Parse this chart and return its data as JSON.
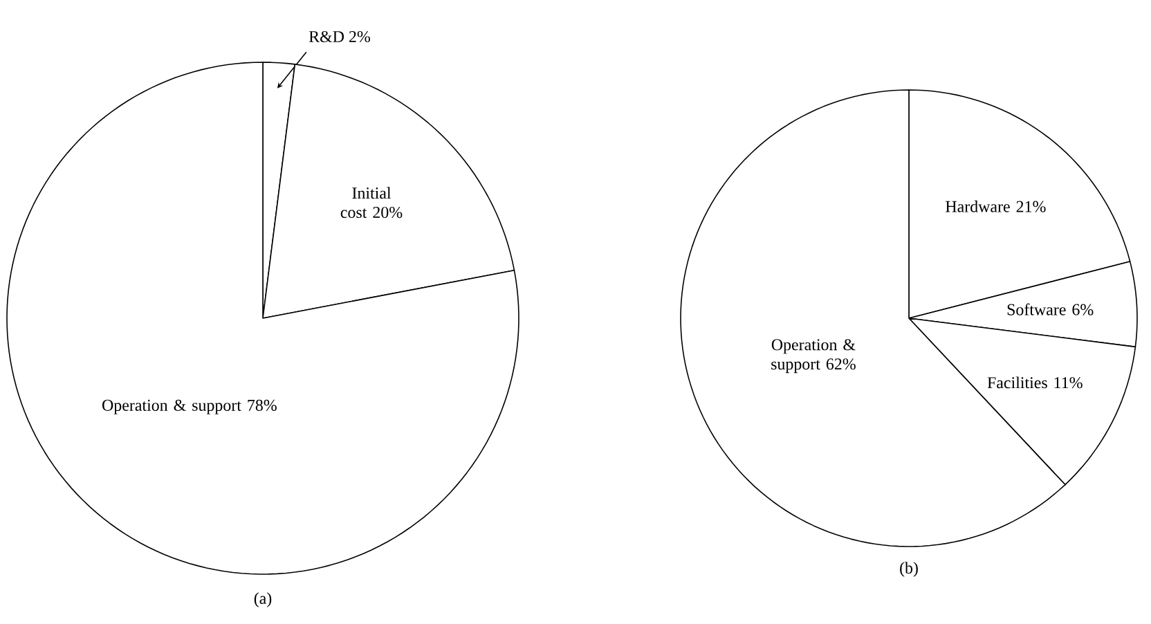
{
  "chart_data": [
    {
      "type": "pie",
      "categories": [
        "R&D",
        "Initial cost",
        "Operation & support"
      ],
      "values": [
        2,
        20,
        78
      ],
      "value_labels": [
        "2%",
        "20%",
        "78%"
      ],
      "colors": [
        "#ffffff",
        "#ffffff",
        "#ffffff"
      ],
      "annotations": [
        "(a)"
      ]
    },
    {
      "type": "pie",
      "categories": [
        "Hardware",
        "Software",
        "Facilities",
        "Operation & support"
      ],
      "values": [
        21,
        6,
        11,
        62
      ],
      "value_labels": [
        "21%",
        "6%",
        "11%",
        "62%"
      ],
      "colors": [
        "#ffffff",
        "#ffffff",
        "#ffffff",
        "#ffffff"
      ],
      "annotations": [
        "(b)"
      ]
    }
  ]
}
